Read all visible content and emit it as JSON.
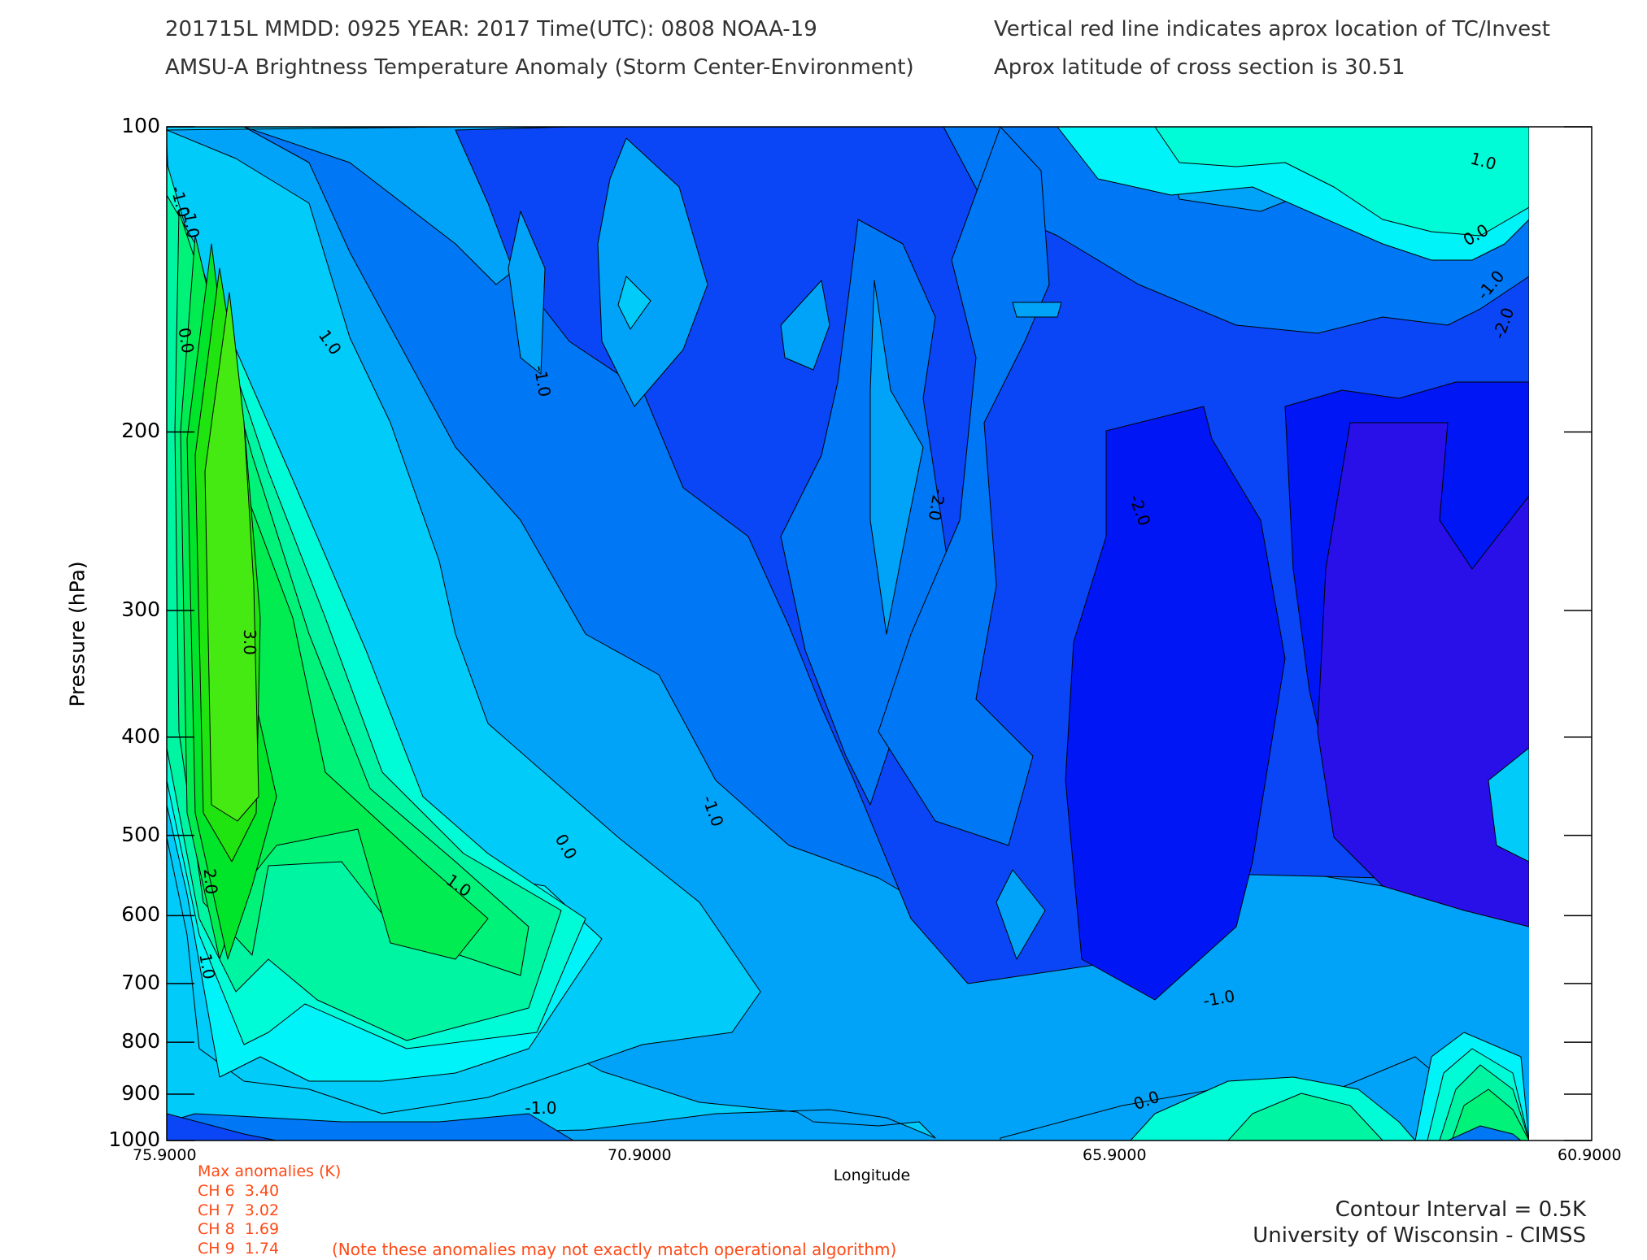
{
  "header": {
    "line1_left": "201715L  MMDD: 0925 YEAR: 2017 Time(UTC): 0808 NOAA-19",
    "line2_left": "AMSU-A Brightness Temperature Anomaly (Storm Center-Environment)",
    "line1_right": "Vertical red line indicates aprox location of TC/Invest",
    "line2_right": "Aprox latitude of cross section is 30.51"
  },
  "chart_data": {
    "type": "heatmap",
    "xlabel": "Longitude",
    "ylabel": "Pressure (hPa)",
    "x_ticks": [
      "75.9000",
      "70.9000",
      "65.9000",
      "60.9000"
    ],
    "y_ticks": [
      "100",
      "200",
      "300",
      "400",
      "500",
      "600",
      "700",
      "800",
      "900",
      "1000"
    ],
    "y_scale": "log",
    "xlim": [
      75.9,
      60.9
    ],
    "ylim": [
      100,
      1000
    ],
    "contour_interval": 0.5,
    "contour_labels": [
      "-2.0",
      "-1.0",
      "0.0",
      "1.0",
      "2.0",
      "3.0"
    ],
    "color_levels": [
      {
        "level": -3.5,
        "color": "#2a10e8"
      },
      {
        "level": -3.0,
        "color": "#0016f5"
      },
      {
        "level": -2.5,
        "color": "#0a46f5"
      },
      {
        "level": -2.0,
        "color": "#0077f5"
      },
      {
        "level": -1.5,
        "color": "#00a3f7"
      },
      {
        "level": -1.0,
        "color": "#00cbf9"
      },
      {
        "level": -0.5,
        "color": "#00f3f9"
      },
      {
        "level": 0.0,
        "color": "#00fbd7"
      },
      {
        "level": 0.5,
        "color": "#00f5a3"
      },
      {
        "level": 1.0,
        "color": "#00f278"
      },
      {
        "level": 1.5,
        "color": "#00ec50"
      },
      {
        "level": 2.0,
        "color": "#00e42a"
      },
      {
        "level": 2.5,
        "color": "#20e410"
      },
      {
        "level": 3.0,
        "color": "#45ea12"
      }
    ],
    "max_anomalies_title": "Max anomalies (K)",
    "max_anomalies": [
      {
        "channel": "CH 6",
        "value": "3.40"
      },
      {
        "channel": "CH 7",
        "value": "3.02"
      },
      {
        "channel": "CH 8",
        "value": "1.69"
      },
      {
        "channel": "CH 9",
        "value": "1.74"
      }
    ]
  },
  "note": "(Note these anomalies may not exactly match operational algorithm)",
  "footer": {
    "contour_interval_text": "Contour Interval = 0.5K",
    "institution": "University of Wisconsin - CIMSS"
  }
}
